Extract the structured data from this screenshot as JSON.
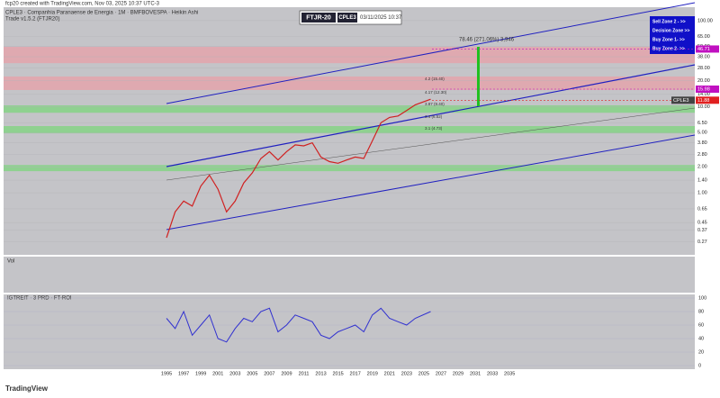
{
  "header": {
    "credit": "fcp20 created with TradingView.com, Nov 03, 2025 10:37 UTC-3",
    "symbol_line": "CPLE3 · Companhia Paranaense de Energia · 1M · BMFBOVESPA · Heikin Ashi",
    "study_line": "Trade v1.5.2 (FTJR20)",
    "badge": "FTJR-20",
    "ticker": "CPLE3",
    "timestamp": "03/11/2025 10:37"
  },
  "annotation": "78.46 (271.06%) 3,946",
  "legend": [
    "Sell Zone 2 - >>",
    "Decision Zone >>",
    "Buy Zone 1- >>",
    "Buy Zone 2- >>"
  ],
  "fib_labels": [
    "4.2 (15.40)",
    "4.17 (12.30)",
    "3.87 (9.40)",
    "3.4 (6.52)",
    "3.1 (4.73)"
  ],
  "volume_label": "Vol",
  "indicator_label": "IGTREIT · 3 PRD · FT-ROI",
  "footer": "TradingView",
  "chart_data": {
    "type": "line",
    "log_scale": true,
    "grid": true,
    "xlim": [
      1976,
      2056.6
    ],
    "ylim": [
      0.19,
      143
    ],
    "xticks": [
      1995,
      1997,
      1999,
      2001,
      2003,
      2005,
      2007,
      2009,
      2011,
      2013,
      2015,
      2017,
      2019,
      2021,
      2023,
      2025,
      2027,
      2029,
      2031,
      2033,
      2035
    ],
    "yticks": [
      {
        "value": 100,
        "label": "100.00"
      },
      {
        "value": 65,
        "label": "65.00"
      },
      {
        "value": 50,
        "label": "50.00"
      },
      {
        "value": 38,
        "label": "38.00"
      },
      {
        "value": 28,
        "label": "28.00"
      },
      {
        "value": 20,
        "label": "20.00"
      },
      {
        "value": 14,
        "label": "14.00"
      },
      {
        "value": 10,
        "label": "10.00"
      },
      {
        "value": 6.5,
        "label": "6.50"
      },
      {
        "value": 5,
        "label": "5.00"
      },
      {
        "value": 3.8,
        "label": "3.80"
      },
      {
        "value": 2.8,
        "label": "2.80"
      },
      {
        "value": 2,
        "label": "2.00"
      },
      {
        "value": 1.4,
        "label": "1.40"
      },
      {
        "value": 1,
        "label": "1.00"
      },
      {
        "value": 0.65,
        "label": "0.65"
      },
      {
        "value": 0.45,
        "label": "0.45"
      },
      {
        "value": 0.37,
        "label": "0.37"
      },
      {
        "value": 0.27,
        "label": "0.27"
      }
    ],
    "zones": [
      {
        "low": 32,
        "high": 49.5,
        "color": "#e8a0a8"
      },
      {
        "low": 15.6,
        "high": 22.4,
        "color": "#e8a0a8"
      },
      {
        "low": 8.5,
        "high": 10.35,
        "color": "#7ed67e"
      },
      {
        "low": 4.9,
        "high": 5.95,
        "color": "#7ed67e"
      },
      {
        "low": 1.78,
        "high": 2.1,
        "color": "#7ed67e"
      }
    ],
    "levels": [
      {
        "value": 46.71,
        "color": "#c010c0"
      },
      {
        "value": 15.98,
        "color": "#c010c0"
      },
      {
        "value": 11.88,
        "color": "#e02020",
        "label": "CPLE3"
      }
    ],
    "series": [
      {
        "name": "CPLE3",
        "color": "#d02020",
        "x": [
          1995,
          1996,
          1997,
          1998,
          1999,
          2000,
          2001,
          2002,
          2003,
          2004,
          2005,
          2006,
          2007,
          2008,
          2009,
          2010,
          2011,
          2012,
          2013,
          2014,
          2015,
          2016,
          2017,
          2018,
          2019,
          2020,
          2021,
          2022,
          2023,
          2024,
          2025.8
        ],
        "values": [
          0.3,
          0.6,
          0.8,
          0.7,
          1.2,
          1.6,
          1.1,
          0.6,
          0.8,
          1.3,
          1.7,
          2.5,
          3.0,
          2.4,
          3.0,
          3.6,
          3.5,
          3.8,
          2.6,
          2.3,
          2.2,
          2.4,
          2.6,
          2.5,
          4.0,
          6.5,
          7.5,
          7.8,
          9.0,
          10.5,
          12.2
        ]
      }
    ],
    "indicator": {
      "ylim": [
        0,
        100
      ],
      "yticks": [
        0,
        20,
        40,
        60,
        80,
        100
      ],
      "color": "#3030d0",
      "values": [
        70,
        55,
        80,
        45,
        60,
        75,
        40,
        35,
        55,
        70,
        65,
        80,
        85,
        50,
        60,
        75,
        70,
        65,
        45,
        40,
        50,
        55,
        60,
        50,
        75,
        85,
        70,
        65,
        60,
        70,
        80
      ]
    }
  }
}
